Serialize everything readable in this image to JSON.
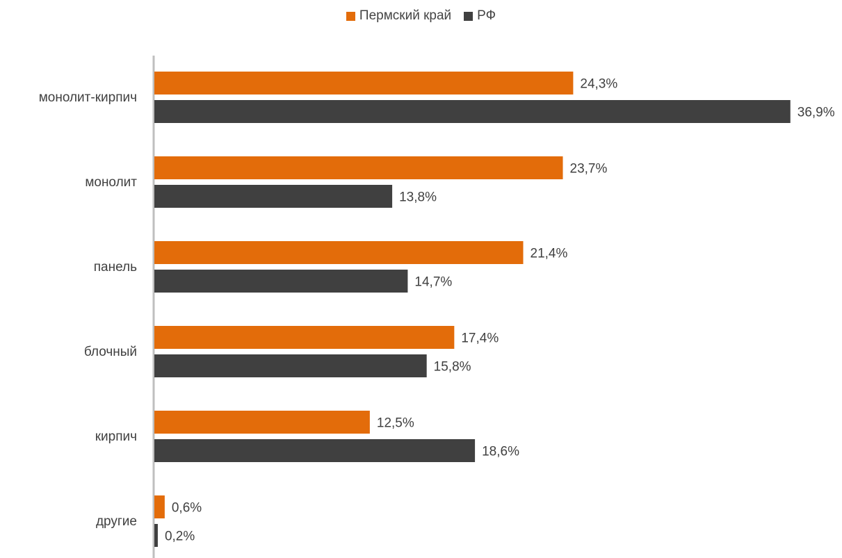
{
  "chart_data": {
    "type": "bar",
    "orientation": "horizontal",
    "categories": [
      "монолит-кирпич",
      "монолит",
      "панель",
      "блочный",
      "кирпич",
      "другие"
    ],
    "series": [
      {
        "name": "Пермский край",
        "color": "#E36C0A",
        "values": [
          24.3,
          23.7,
          21.4,
          17.4,
          12.5,
          0.6
        ],
        "labels": [
          "24,3%",
          "23,7%",
          "21,4%",
          "17,4%",
          "12,5%",
          "0,6%"
        ]
      },
      {
        "name": "РФ",
        "color": "#404040",
        "values": [
          36.9,
          13.8,
          14.7,
          15.8,
          18.6,
          0.2
        ],
        "labels": [
          "36,9%",
          "13,8%",
          "14,7%",
          "15,8%",
          "18,6%",
          "0,2%"
        ]
      }
    ],
    "xlim": [
      0,
      37
    ],
    "legend_position": "top-center",
    "grid": false,
    "title": "",
    "xlabel": "",
    "ylabel": ""
  }
}
